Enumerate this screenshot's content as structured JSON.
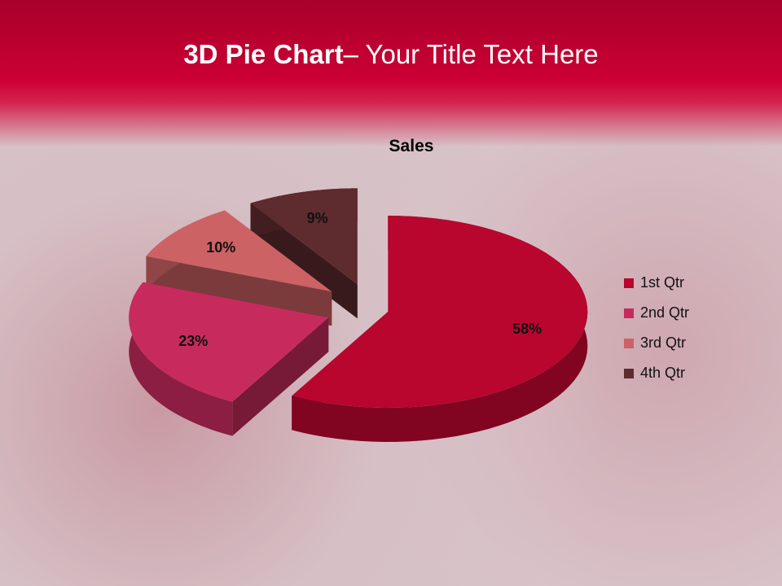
{
  "slide": {
    "title_bold": "3D Pie Chart",
    "title_rest": "– Your Title Text Here"
  },
  "chart_data": {
    "type": "pie",
    "style": "3d-exploded",
    "title": "Sales",
    "categories": [
      "1st Qtr",
      "2nd Qtr",
      "3rd Qtr",
      "4th Qtr"
    ],
    "values": [
      58,
      23,
      10,
      9
    ],
    "data_labels": [
      "58%",
      "23%",
      "10%",
      "9%"
    ],
    "colors": [
      "#b8062e",
      "#c72b5e",
      "#cd6264",
      "#5e2b2e"
    ],
    "legend_position": "right"
  }
}
